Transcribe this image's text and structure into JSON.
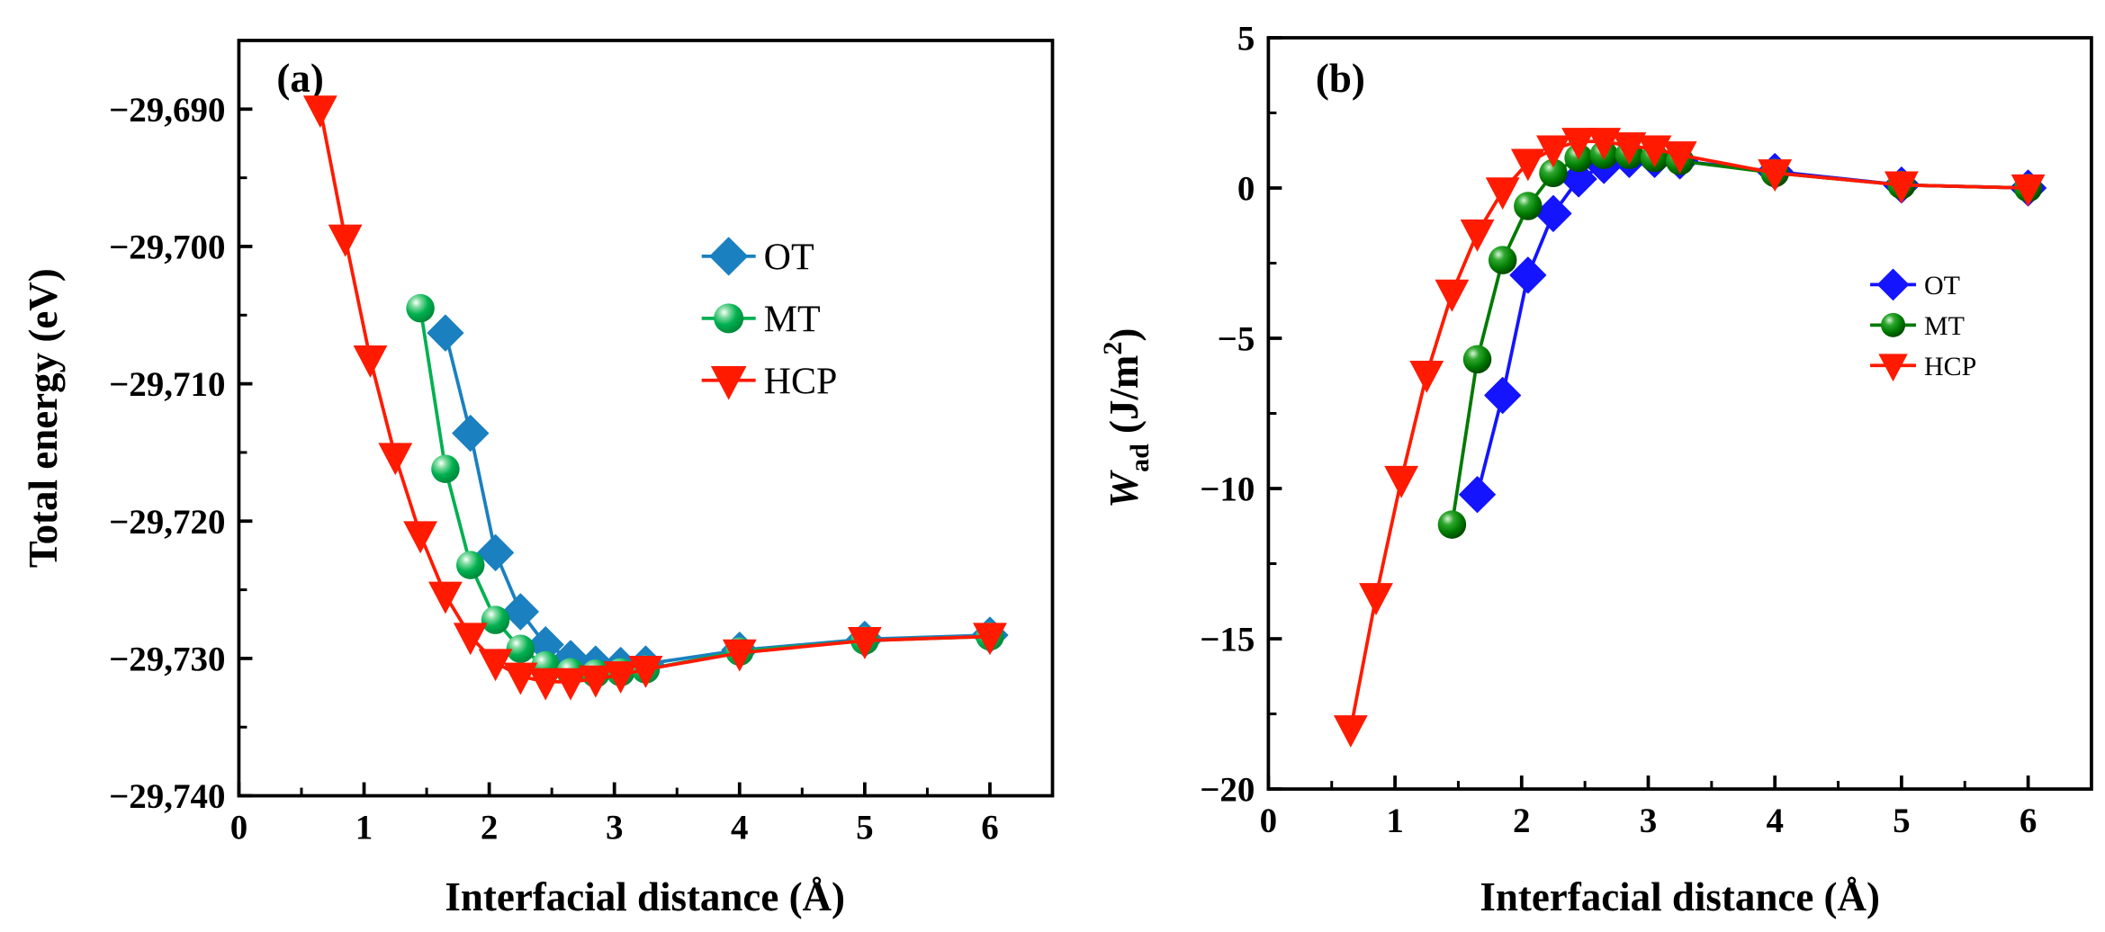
{
  "chart_data": [
    {
      "type": "line",
      "panel_label": "(a)",
      "title": "",
      "xlabel": "Interfacial distance (Å)",
      "ylabel": "Total energy (eV)",
      "xlim": [
        0,
        6.5
      ],
      "ylim": [
        -29740,
        -29685
      ],
      "x_ticks": [
        0,
        1,
        2,
        3,
        4,
        5,
        6
      ],
      "x_tick_labels": [
        "0",
        "1",
        "2",
        "3",
        "4",
        "5",
        "6"
      ],
      "y_ticks": [
        -29690,
        -29700,
        -29710,
        -29720,
        -29730,
        -29740
      ],
      "y_tick_labels": [
        "−29,690",
        "−29,700",
        "−29,710",
        "−29,720",
        "−29,730",
        "−29,740"
      ],
      "legend_placement": "center-right",
      "series": [
        {
          "name": "OT",
          "color": "#1a80c0",
          "marker": "diamond",
          "x": [
            1.65,
            1.85,
            2.05,
            2.25,
            2.45,
            2.65,
            2.85,
            3.05,
            3.25,
            4,
            5,
            6
          ],
          "y": [
            -29706.3,
            -29713.6,
            -29722.3,
            -29726.6,
            -29729.0,
            -29730.0,
            -29730.4,
            -29730.5,
            -29730.4,
            -29729.4,
            -29728.6,
            -29728.3
          ]
        },
        {
          "name": "MT",
          "color": "#00b050",
          "marker": "sphere",
          "x": [
            1.45,
            1.65,
            1.85,
            2.05,
            2.25,
            2.45,
            2.65,
            2.85,
            3.05,
            3.25,
            4,
            5,
            6
          ],
          "y": [
            -29704.5,
            -29716.2,
            -29723.2,
            -29727.2,
            -29729.3,
            -29730.5,
            -29731.0,
            -29731.1,
            -29731.0,
            -29730.8,
            -29729.5,
            -29728.7,
            -29728.4
          ]
        },
        {
          "name": "HCP",
          "color": "#ff1a00",
          "marker": "triangle-down",
          "x": [
            0.65,
            0.85,
            1.05,
            1.25,
            1.45,
            1.65,
            1.85,
            2.05,
            2.25,
            2.45,
            2.65,
            2.85,
            3.05,
            3.25,
            4,
            5,
            6
          ],
          "y": [
            -29690.0,
            -29699.4,
            -29708.2,
            -29715.3,
            -29721.0,
            -29725.4,
            -29728.4,
            -29730.3,
            -29731.3,
            -29731.7,
            -29731.7,
            -29731.5,
            -29731.2,
            -29730.8,
            -29729.6,
            -29728.7,
            -29728.4
          ]
        }
      ]
    },
    {
      "type": "line",
      "panel_label": "(b)",
      "title": "",
      "xlabel": "Interfacial distance (Å)",
      "ylabel": "W_ad (J/m^2)",
      "ylabel_parts": {
        "main": "W",
        "sub": "ad",
        "unit_open": " (J/m",
        "sup": "2",
        "unit_close": ")"
      },
      "xlim": [
        0,
        6.5
      ],
      "ylim": [
        -20,
        5
      ],
      "x_ticks": [
        0,
        1,
        2,
        3,
        4,
        5,
        6
      ],
      "x_tick_labels": [
        "0",
        "1",
        "2",
        "3",
        "4",
        "5",
        "6"
      ],
      "y_ticks": [
        5,
        0,
        -5,
        -10,
        -15,
        -20
      ],
      "y_tick_labels": [
        "5",
        "0",
        "−5",
        "−10",
        "−15",
        "−20"
      ],
      "legend_placement": "center-right",
      "series": [
        {
          "name": "OT",
          "color": "#1414ff",
          "marker": "diamond",
          "x": [
            1.65,
            1.85,
            2.05,
            2.25,
            2.45,
            2.65,
            2.85,
            3.05,
            3.25,
            4,
            5,
            6
          ],
          "y": [
            -10.2,
            -6.9,
            -2.9,
            -0.85,
            0.3,
            0.75,
            0.95,
            0.95,
            0.9,
            0.55,
            0.1,
            0.0
          ]
        },
        {
          "name": "MT",
          "color": "#007a00",
          "marker": "sphere",
          "x": [
            1.45,
            1.65,
            1.85,
            2.05,
            2.25,
            2.45,
            2.65,
            2.85,
            3.05,
            3.25,
            4,
            5,
            6
          ],
          "y": [
            -11.2,
            -5.7,
            -2.4,
            -0.6,
            0.5,
            1.0,
            1.1,
            1.1,
            1.0,
            0.9,
            0.5,
            0.1,
            0.0
          ]
        },
        {
          "name": "HCP",
          "color": "#ff1a00",
          "marker": "triangle-down",
          "x": [
            0.65,
            0.85,
            1.05,
            1.25,
            1.45,
            1.65,
            1.85,
            2.05,
            2.25,
            2.45,
            2.65,
            2.85,
            3.05,
            3.25,
            4,
            5,
            6
          ],
          "y": [
            -18.0,
            -13.6,
            -9.7,
            -6.2,
            -3.5,
            -1.5,
            -0.1,
            0.85,
            1.3,
            1.55,
            1.55,
            1.4,
            1.3,
            1.1,
            0.5,
            0.1,
            0.0
          ]
        }
      ]
    }
  ]
}
